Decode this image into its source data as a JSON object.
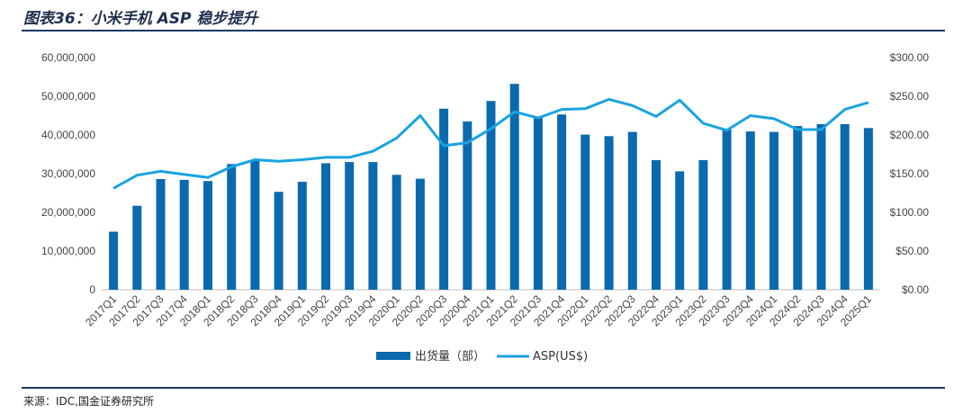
{
  "header": {
    "title": "图表36：小米手机 ASP 稳步提升"
  },
  "footer": {
    "source": "来源：IDC,国金证券研究所"
  },
  "colors": {
    "bar": "#0b6aae",
    "line": "#1aa3e0",
    "rule": "#1f3864"
  },
  "chart_data": {
    "type": "bar+line",
    "categories": [
      "2017Q1",
      "2017Q2",
      "2017Q3",
      "2017Q4",
      "2018Q1",
      "2018Q2",
      "2018Q3",
      "2018Q4",
      "2019Q1",
      "2019Q2",
      "2019Q3",
      "2019Q4",
      "2020Q1",
      "2020Q2",
      "2020Q3",
      "2020Q4",
      "2021Q1",
      "2021Q2",
      "2021Q3",
      "2021Q4",
      "2022Q1",
      "2022Q2",
      "2022Q3",
      "2022Q4",
      "2023Q1",
      "2023Q2",
      "2023Q3",
      "2023Q4",
      "2024Q1",
      "2024Q2",
      "2024Q3",
      "2024Q4",
      "2025Q1"
    ],
    "series": [
      {
        "name": "出货量（部）",
        "type": "bar",
        "axis": "left",
        "values": [
          15000000,
          21700000,
          28600000,
          28400000,
          28100000,
          32500000,
          33600000,
          25300000,
          27900000,
          32700000,
          33000000,
          33000000,
          29700000,
          28700000,
          46800000,
          43500000,
          48800000,
          53200000,
          44400000,
          45300000,
          40100000,
          39700000,
          40800000,
          33500000,
          30600000,
          33500000,
          41400000,
          40900000,
          40800000,
          42300000,
          42800000,
          42800000,
          41800000
        ]
      },
      {
        "name": "ASP(US$)",
        "type": "line",
        "axis": "right",
        "values": [
          131,
          148,
          153,
          149,
          145,
          159,
          168,
          166,
          168,
          171,
          171,
          179,
          196,
          225,
          186,
          190,
          208,
          230,
          222,
          233,
          234,
          246,
          238,
          224,
          245,
          215,
          206,
          225,
          221,
          207,
          207,
          233,
          242
        ]
      }
    ],
    "y_left": {
      "ylim": [
        0,
        60000000
      ],
      "ticks": [
        "0",
        "10,000,000",
        "20,000,000",
        "30,000,000",
        "40,000,000",
        "50,000,000",
        "60,000,000"
      ]
    },
    "y_right": {
      "ylim": [
        0,
        300
      ],
      "ticks": [
        "$0.00",
        "$50.00",
        "$100.00",
        "$150.00",
        "$200.00",
        "$250.00",
        "$300.00"
      ]
    },
    "legend": {
      "placement": "bottom-center",
      "items": [
        "出货量（部）",
        "ASP(US$)"
      ]
    },
    "grid": false
  }
}
